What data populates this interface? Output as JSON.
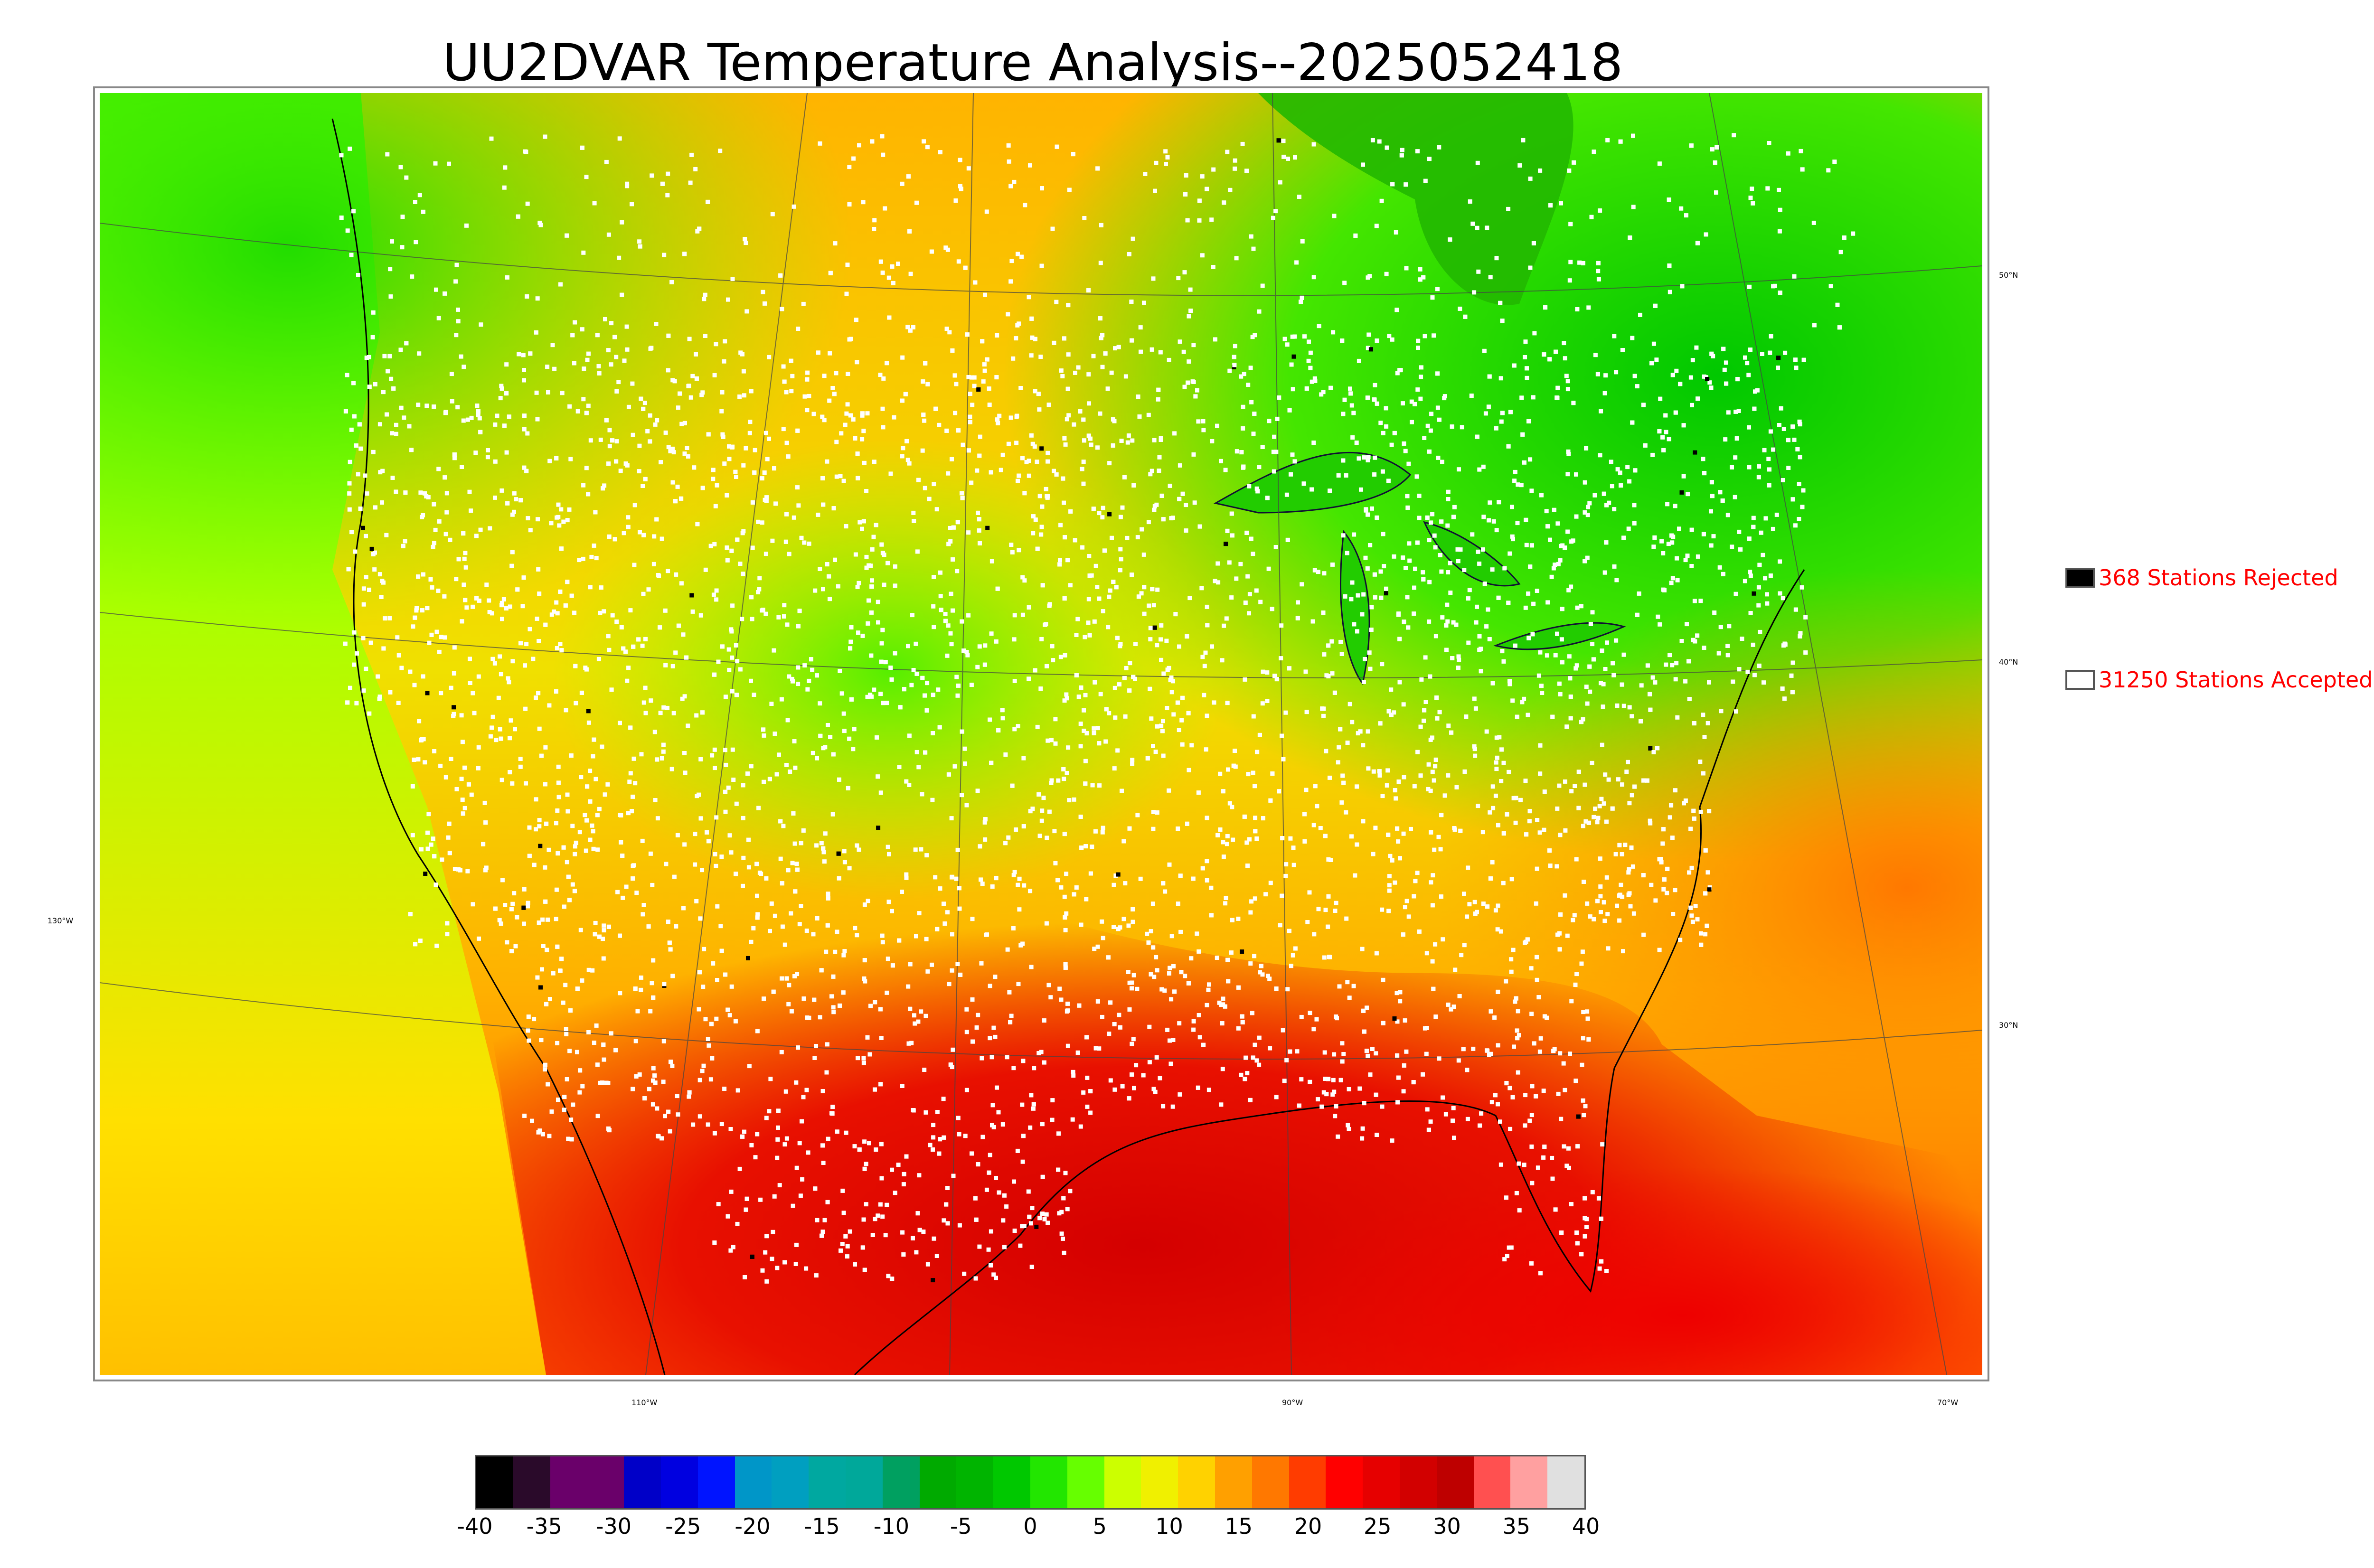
{
  "title": "UU2DVAR Temperature Analysis--2025052418",
  "legend": {
    "rejected": {
      "label": "368 Stations Rejected",
      "swatch_color": "#000000"
    },
    "accepted": {
      "label": "31250 Stations Accepted",
      "swatch_color": "#ffffff"
    }
  },
  "graticule_labels": {
    "lat": [
      "50°N",
      "40°N",
      "30°N"
    ],
    "lon": [
      "130°W",
      "110°W",
      "90°W",
      "70°W"
    ]
  },
  "colorbar": {
    "ticks": [
      "-40",
      "-35",
      "-30",
      "-25",
      "-20",
      "-15",
      "-10",
      "-5",
      "0",
      "5",
      "10",
      "15",
      "20",
      "25",
      "30",
      "35",
      "40"
    ],
    "colors": [
      "#000000",
      "#2a0a2a",
      "#6a006a",
      "#6a006a",
      "#0000c8",
      "#0000e0",
      "#0014ff",
      "#0096c8",
      "#009fc0",
      "#00a8a0",
      "#00a89a",
      "#00a060",
      "#00aa00",
      "#00b400",
      "#00c800",
      "#22e600",
      "#66ff00",
      "#ccff00",
      "#f0f000",
      "#ffd200",
      "#ffa000",
      "#ff7800",
      "#ff3c00",
      "#ff0000",
      "#e60000",
      "#d20000",
      "#be0000",
      "#ff5050",
      "#ffa0a0",
      "#e0e0e0"
    ]
  }
}
